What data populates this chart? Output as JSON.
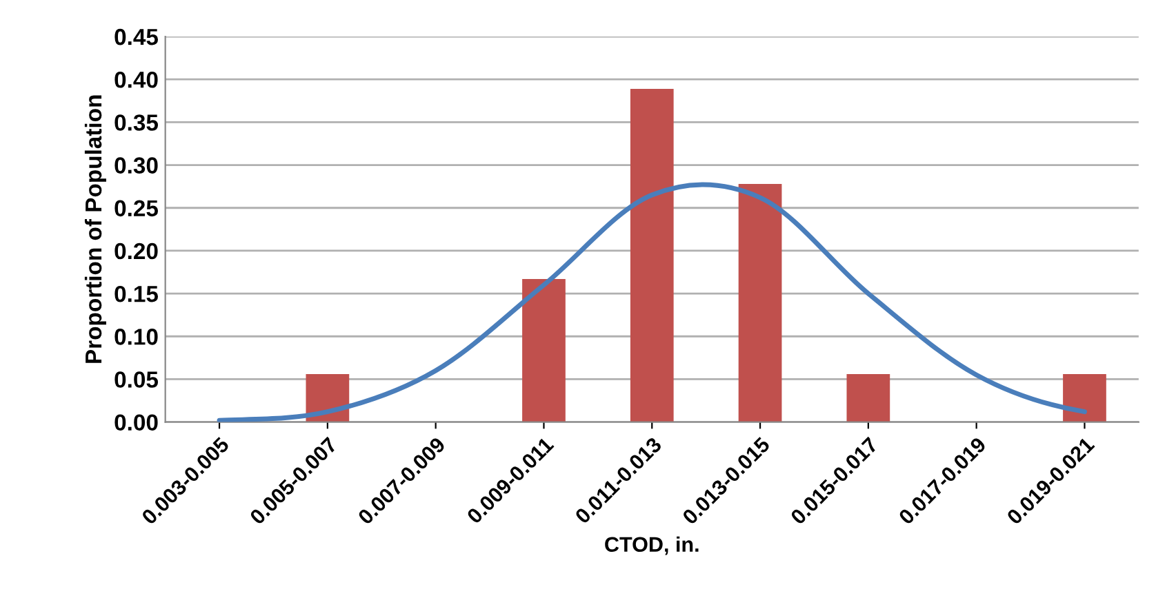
{
  "chart_data": {
    "type": "bar",
    "xlabel": "CTOD, in.",
    "ylabel": "Proportion of Population",
    "categories": [
      "0.003-0.005",
      "0.005-0.007",
      "0.007-0.009",
      "0.009-0.011",
      "0.011-0.013",
      "0.013-0.015",
      "0.015-0.017",
      "0.017-0.019",
      "0.019-0.021"
    ],
    "series": [
      {
        "type": "bar",
        "color": "#c0504d",
        "values": [
          0,
          0.056,
          0,
          0.167,
          0.389,
          0.278,
          0.056,
          0,
          0.056
        ]
      },
      {
        "type": "line",
        "color": "#4a7ebb",
        "values": [
          0.002,
          0.012,
          0.06,
          0.16,
          0.265,
          0.262,
          0.15,
          0.055,
          0.012
        ]
      }
    ],
    "ylim": [
      0,
      0.45
    ],
    "yticks": [
      {
        "value": 0,
        "label": "0.00"
      },
      {
        "value": 0.05,
        "label": "0.05"
      },
      {
        "value": 0.1,
        "label": "0.10"
      },
      {
        "value": 0.15,
        "label": "0.15"
      },
      {
        "value": 0.2,
        "label": "0.20"
      },
      {
        "value": 0.25,
        "label": "0.25"
      },
      {
        "value": 0.3,
        "label": "0.30"
      },
      {
        "value": 0.35,
        "label": "0.35"
      },
      {
        "value": 0.4,
        "label": "0.40"
      },
      {
        "value": 0.45,
        "label": "0.45"
      }
    ],
    "grid": "y",
    "legend": false
  }
}
